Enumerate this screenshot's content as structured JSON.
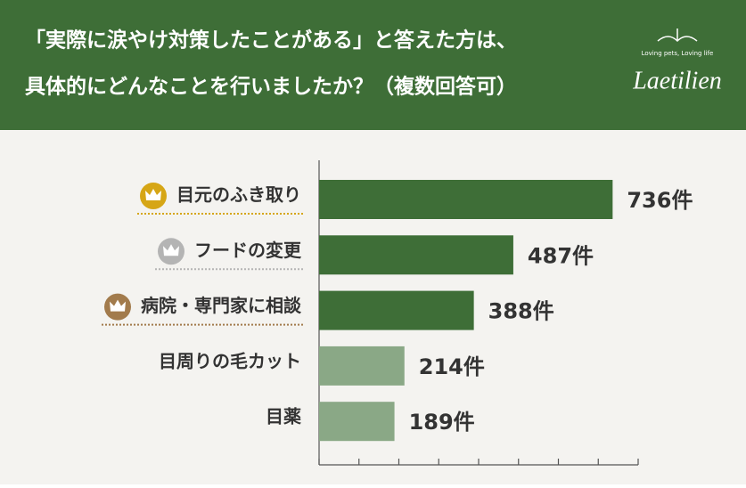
{
  "chart_data": {
    "type": "hbar",
    "title": [
      "「実際に涙やけ対策したことがある」と答えた方は、",
      "具体的にどんなことを行いましたか？（複数回答可）"
    ],
    "brand": "Laetilien",
    "tagline": "Loving pets, Loving life",
    "categories": [
      "目元のふき取り",
      "フードの変更",
      "病院・専門家に相談",
      "目周りの毛カット",
      "目薬"
    ],
    "values": [
      736,
      487,
      388,
      214,
      189
    ],
    "value_labels": [
      "736件",
      "487件",
      "388件",
      "214件",
      "189件"
    ],
    "colors": [
      "#3e6e37",
      "#3e6e37",
      "#3e6e37",
      "#8aa886",
      "#8aa886"
    ],
    "xlim": [
      0,
      800
    ],
    "xticks": [
      0,
      100,
      200,
      300,
      400,
      500,
      600,
      700,
      800
    ]
  }
}
